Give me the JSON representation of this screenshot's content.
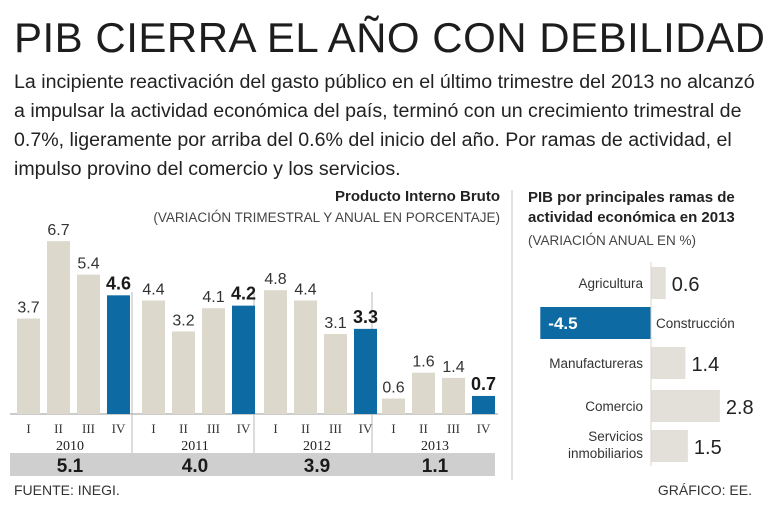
{
  "title": "PIB CIERRA EL AÑO CON DEBILIDAD",
  "lead": "La incipiente reactivación del gasto público en el último trimestre del 2013 no alcanzó a impulsar la actividad económica del país, terminó con un crecimiento trimestral de 0.7%, ligeramente por arriba del 0.6% del inicio del año. Por ramas de actividad, el impulso provino del comercio y los servicios.",
  "footer": {
    "source": "FUENTE: INEGI.",
    "credit": "GRÁFICO: EE."
  },
  "colors": {
    "bar": "#dcd9cc",
    "highlight": "#0d6aa3",
    "band": "#cfcfcf",
    "negative": "#0d6aa3"
  },
  "chart_data": [
    {
      "type": "bar",
      "title": "Producto Interno Bruto",
      "subtitle": "(VARIACIÓN TRIMESTRAL Y ANUAL EN PORCENTAJE)",
      "categories": [
        "I",
        "II",
        "III",
        "IV",
        "I",
        "II",
        "III",
        "IV",
        "I",
        "II",
        "III",
        "IV",
        "I",
        "II",
        "III",
        "IV"
      ],
      "values": [
        3.7,
        6.7,
        5.4,
        4.6,
        4.4,
        3.2,
        4.1,
        4.2,
        4.8,
        4.4,
        3.1,
        3.3,
        0.6,
        1.6,
        1.4,
        0.7
      ],
      "highlight_indices": [
        3,
        7,
        11,
        15
      ],
      "years": [
        {
          "label": "2010",
          "annual": "5.1"
        },
        {
          "label": "2011",
          "annual": "4.0"
        },
        {
          "label": "2012",
          "annual": "3.9"
        },
        {
          "label": "2013",
          "annual": "1.1"
        }
      ],
      "ylim": [
        0,
        7
      ]
    },
    {
      "type": "bar",
      "orientation": "horizontal",
      "title": "PIB por principales ramas de actividad económica en 2013",
      "subtitle": "(VARIACIÓN ANUAL EN %)",
      "categories": [
        "Agricultura",
        "Construcción",
        "Manufactureras",
        "Comercio",
        "Servicios inmobiliarios"
      ],
      "category_lines": [
        [
          "Agricultura"
        ],
        [
          "Construcción"
        ],
        [
          "Manufactureras"
        ],
        [
          "Comercio"
        ],
        [
          "Servicios",
          "inmobiliarios"
        ]
      ],
      "values": [
        0.6,
        -4.5,
        1.4,
        2.8,
        1.5
      ],
      "labels": [
        "0.6",
        "-4.5",
        "1.4",
        "2.8",
        "1.5"
      ]
    }
  ]
}
